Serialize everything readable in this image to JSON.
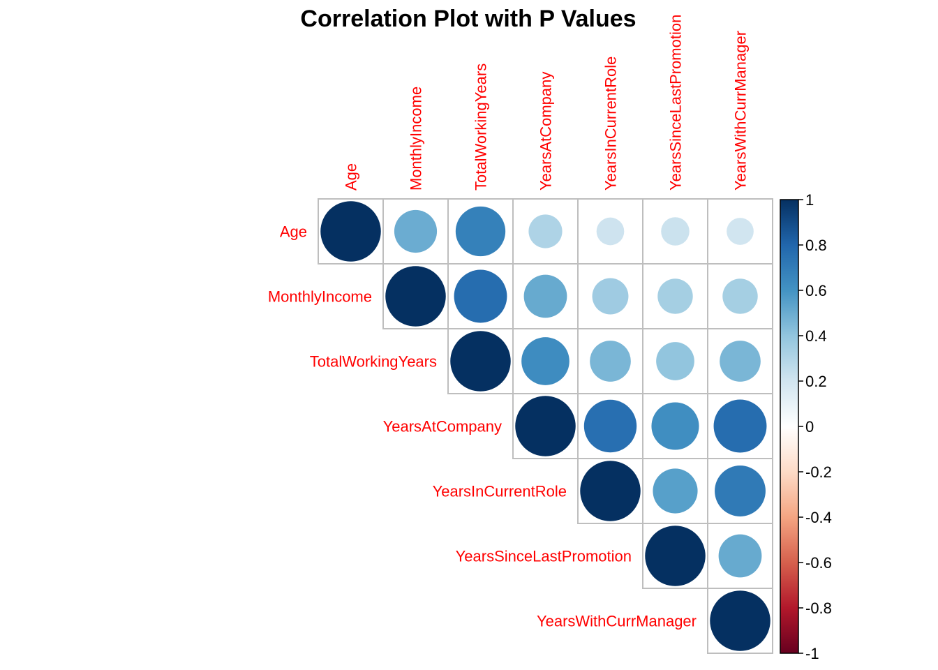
{
  "chart_data": {
    "type": "heatmap",
    "subtype": "correlation-plot-upper-circles",
    "title": "Correlation Plot with P Values",
    "variables": [
      "Age",
      "MonthlyIncome",
      "TotalWorkingYears",
      "YearsAtCompany",
      "YearsInCurrentRole",
      "YearsSinceLastPromotion",
      "YearsWithCurrManager"
    ],
    "matrix": [
      [
        1.0,
        0.5,
        0.68,
        0.31,
        0.21,
        0.22,
        0.2
      ],
      [
        0.5,
        1.0,
        0.77,
        0.51,
        0.36,
        0.34,
        0.34
      ],
      [
        0.68,
        0.77,
        1.0,
        0.63,
        0.46,
        0.4,
        0.46
      ],
      [
        0.31,
        0.51,
        0.63,
        1.0,
        0.76,
        0.62,
        0.77
      ],
      [
        0.21,
        0.36,
        0.46,
        0.76,
        1.0,
        0.55,
        0.71
      ],
      [
        0.22,
        0.34,
        0.4,
        0.62,
        0.55,
        1.0,
        0.51
      ],
      [
        0.2,
        0.34,
        0.46,
        0.77,
        0.71,
        0.51,
        1.0
      ]
    ],
    "triangle": "upper",
    "legend": {
      "placement": "right",
      "range": [
        -1,
        1
      ],
      "ticks": [
        "1",
        "0.8",
        "0.6",
        "0.4",
        "0.2",
        "0",
        "-0.2",
        "-0.4",
        "-0.6",
        "-0.8",
        "-1"
      ]
    },
    "colors": {
      "label": "#ff0000",
      "grid": "#bebebe",
      "stops": [
        "#67001F",
        "#B2182B",
        "#D6604D",
        "#F4A582",
        "#FDDBC7",
        "#FFFFFF",
        "#D1E5F0",
        "#92C5DE",
        "#4393C3",
        "#2166AC",
        "#053061"
      ]
    }
  }
}
